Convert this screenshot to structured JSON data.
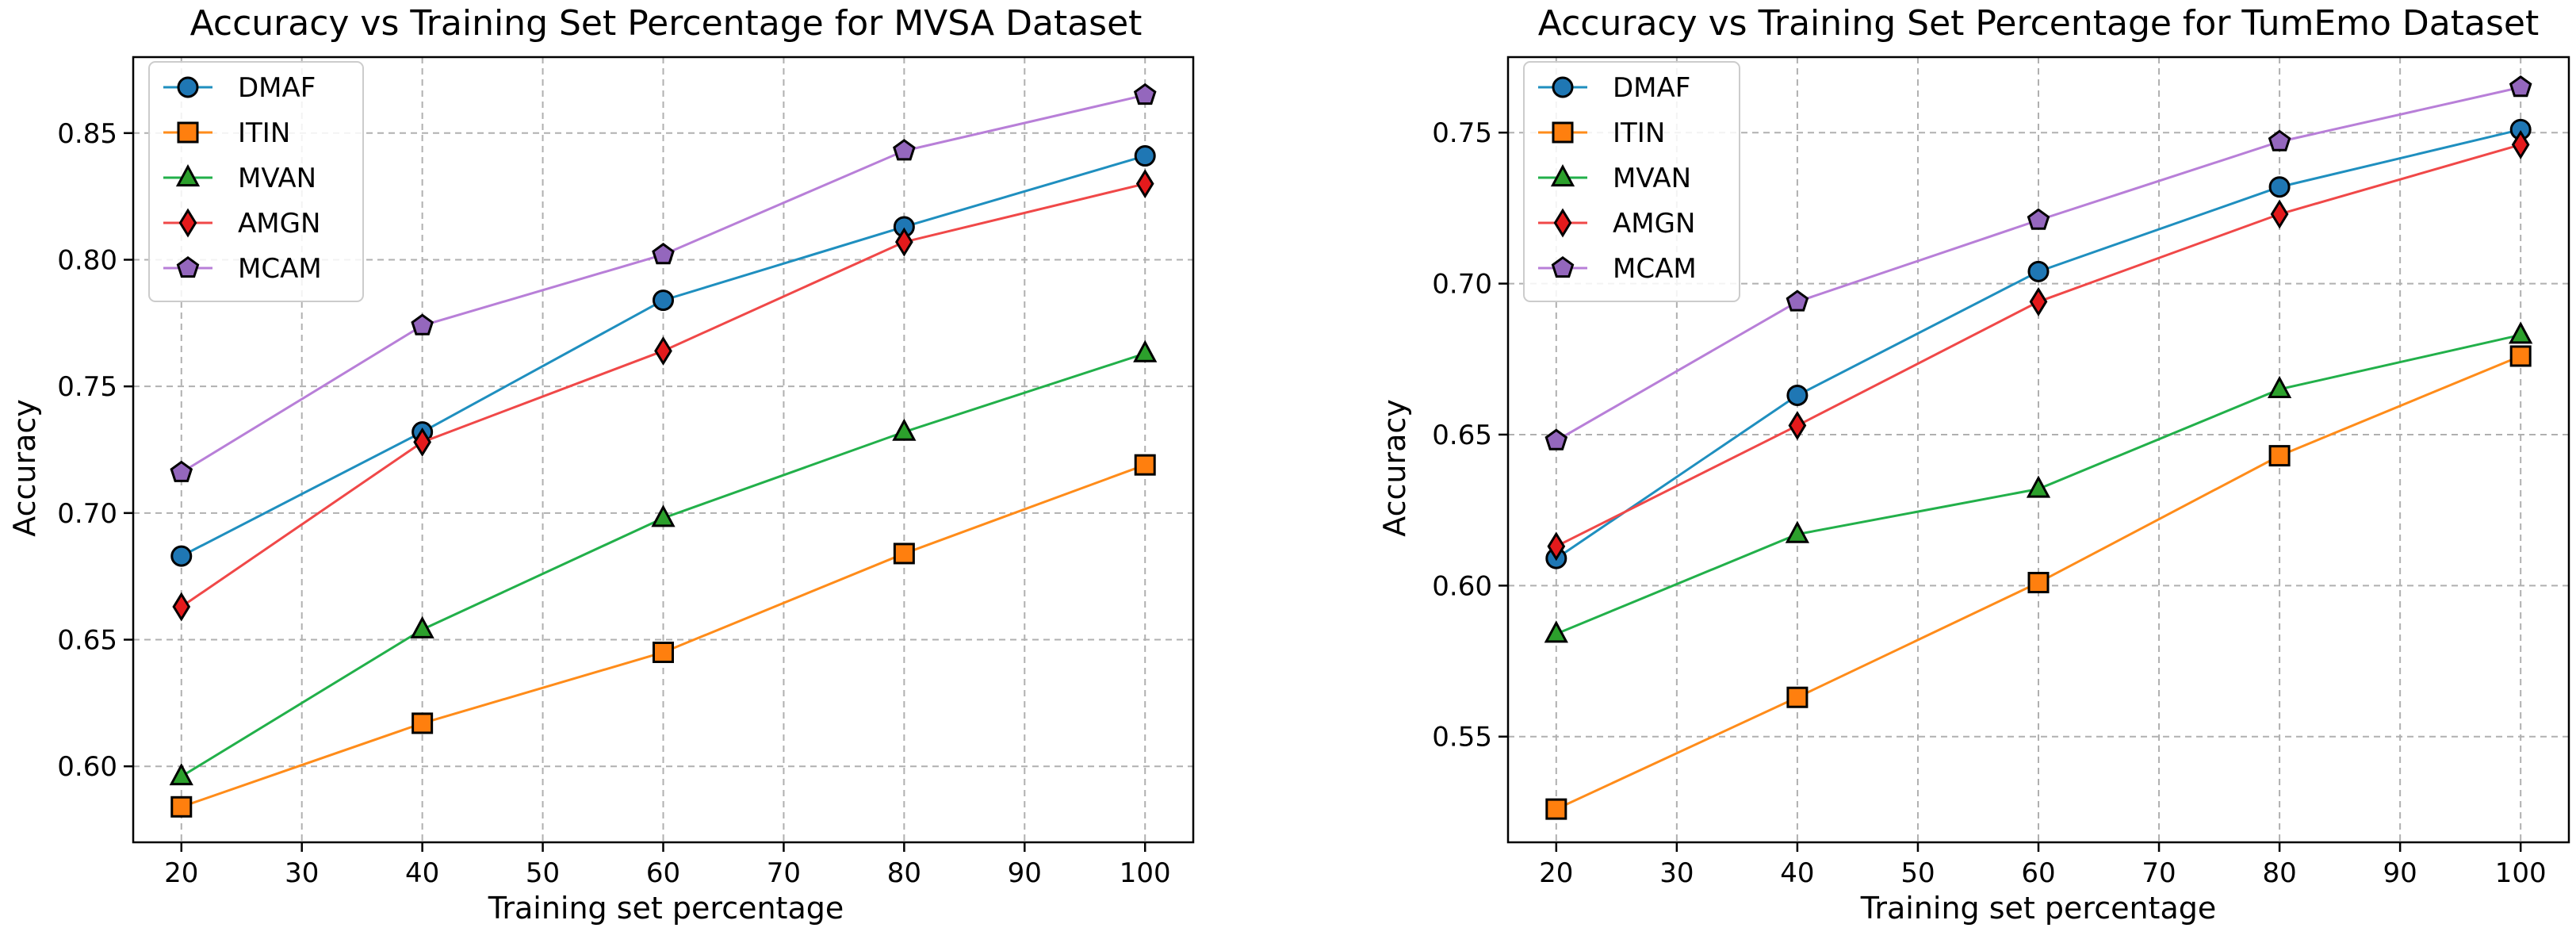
{
  "chart_data": [
    {
      "type": "line",
      "title": "Accuracy vs Training Set Percentage for MVSA Dataset",
      "xlabel": "Training set percentage",
      "ylabel": "Accuracy",
      "xlim": [
        16,
        104
      ],
      "ylim": [
        0.57,
        0.88
      ],
      "xticks": [
        20,
        30,
        40,
        50,
        60,
        70,
        80,
        90,
        100
      ],
      "yticks": [
        0.6,
        0.65,
        0.7,
        0.75,
        0.8,
        0.85
      ],
      "grid": true,
      "legend": "top-left",
      "x": [
        20,
        40,
        60,
        80,
        100
      ],
      "series": [
        {
          "name": "DMAF",
          "values": [
            0.683,
            0.732,
            0.784,
            0.813,
            0.841
          ],
          "color": "#1f8fbf",
          "marker": "circle",
          "marker_color": "#1f77b4"
        },
        {
          "name": "ITIN",
          "values": [
            0.584,
            0.617,
            0.645,
            0.684,
            0.719
          ],
          "color": "#ff8c1a",
          "marker": "square",
          "marker_color": "#ff7f0e"
        },
        {
          "name": "MVAN",
          "values": [
            0.596,
            0.654,
            0.698,
            0.732,
            0.763
          ],
          "color": "#22b04a",
          "marker": "triangle",
          "marker_color": "#2ca02c"
        },
        {
          "name": "AMGN",
          "values": [
            0.663,
            0.728,
            0.764,
            0.807,
            0.83
          ],
          "color": "#f04848",
          "marker": "diamond",
          "marker_color": "#e41a1c"
        },
        {
          "name": "MCAM",
          "values": [
            0.716,
            0.774,
            0.802,
            0.843,
            0.865
          ],
          "color": "#b87fd8",
          "marker": "pentagon",
          "marker_color": "#9467bd"
        }
      ]
    },
    {
      "type": "line",
      "title": "Accuracy vs Training Set Percentage for TumEmo Dataset",
      "xlabel": "Training set percentage",
      "ylabel": "Accuracy",
      "xlim": [
        16,
        104
      ],
      "ylim": [
        0.515,
        0.775
      ],
      "xticks": [
        20,
        30,
        40,
        50,
        60,
        70,
        80,
        90,
        100
      ],
      "yticks": [
        0.55,
        0.6,
        0.65,
        0.7,
        0.75
      ],
      "grid": true,
      "legend": "top-left",
      "x": [
        20,
        40,
        60,
        80,
        100
      ],
      "series": [
        {
          "name": "DMAF",
          "values": [
            0.609,
            0.663,
            0.704,
            0.732,
            0.751
          ],
          "color": "#1f8fbf",
          "marker": "circle",
          "marker_color": "#1f77b4"
        },
        {
          "name": "ITIN",
          "values": [
            0.526,
            0.563,
            0.601,
            0.643,
            0.676
          ],
          "color": "#ff8c1a",
          "marker": "square",
          "marker_color": "#ff7f0e"
        },
        {
          "name": "MVAN",
          "values": [
            0.584,
            0.617,
            0.632,
            0.665,
            0.683
          ],
          "color": "#22b04a",
          "marker": "triangle",
          "marker_color": "#2ca02c"
        },
        {
          "name": "AMGN",
          "values": [
            0.613,
            0.653,
            0.694,
            0.723,
            0.746
          ],
          "color": "#f04848",
          "marker": "diamond",
          "marker_color": "#e41a1c"
        },
        {
          "name": "MCAM",
          "values": [
            0.648,
            0.694,
            0.721,
            0.747,
            0.765
          ],
          "color": "#b87fd8",
          "marker": "pentagon",
          "marker_color": "#9467bd"
        }
      ]
    }
  ]
}
